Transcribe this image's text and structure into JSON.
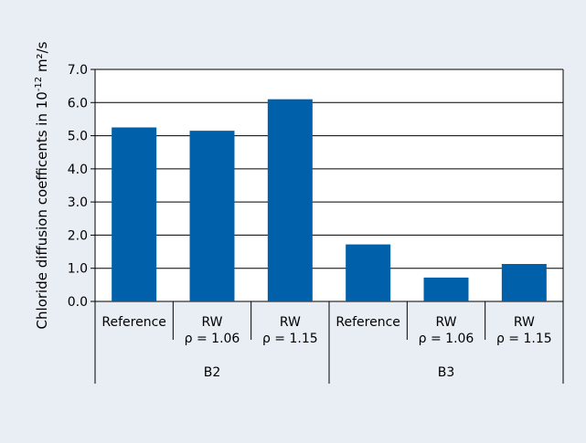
{
  "chart_data": {
    "type": "bar",
    "ylabel": "Chloride diffusion coefficents in 10",
    "ylabel_exp": "-12",
    "ylabel_unit": " m²/s",
    "ylim": [
      0,
      7
    ],
    "yticks": [
      "0.0",
      "1.0",
      "2.0",
      "3.0",
      "4.0",
      "5.0",
      "6.0",
      "7.0"
    ],
    "ytick_values": [
      0,
      1,
      2,
      3,
      4,
      5,
      6,
      7
    ],
    "grid": true,
    "colors": {
      "bar": "#0060aa",
      "background": "#e9eef5",
      "plot": "#ffffff"
    },
    "categories": [
      {
        "lines": [
          "Reference"
        ]
      },
      {
        "lines": [
          "RW",
          "ρ = 1.06"
        ]
      },
      {
        "lines": [
          "RW",
          "ρ = 1.15"
        ]
      },
      {
        "lines": [
          "Reference"
        ]
      },
      {
        "lines": [
          "RW",
          "ρ = 1.06"
        ]
      },
      {
        "lines": [
          "RW",
          "ρ = 1.15"
        ]
      }
    ],
    "groups": [
      "B2",
      "B3"
    ],
    "values": [
      5.25,
      5.15,
      6.1,
      1.72,
      0.72,
      1.13
    ]
  }
}
